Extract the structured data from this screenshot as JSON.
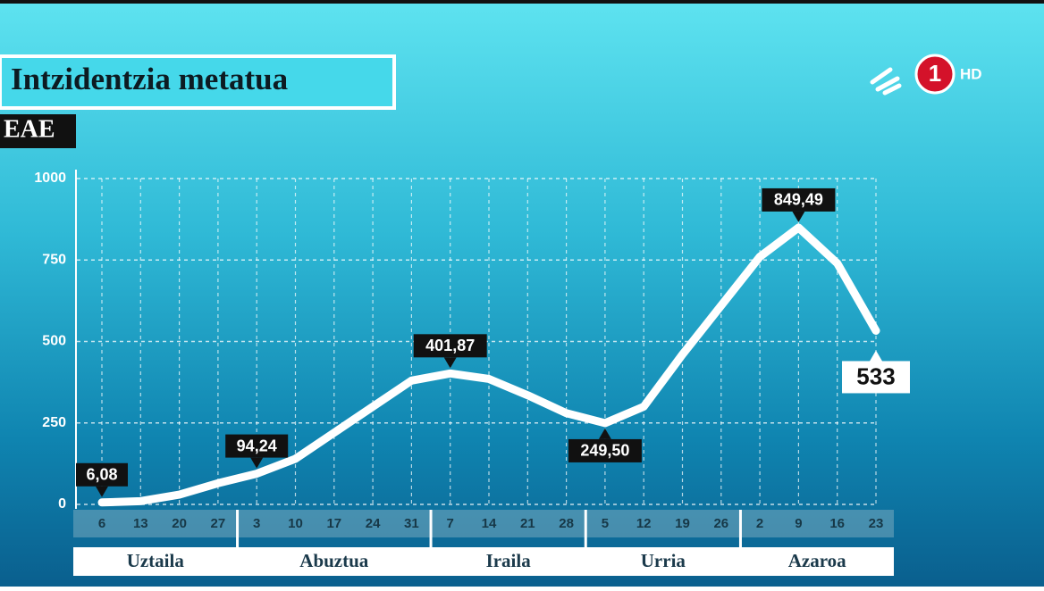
{
  "chart_data": {
    "type": "line",
    "title": "Intzidentzia metatua",
    "subtitle": "EAE",
    "logo": {
      "channel": "1",
      "quality": "HD"
    },
    "categories": [
      "6",
      "13",
      "20",
      "27",
      "3",
      "10",
      "17",
      "24",
      "31",
      "7",
      "14",
      "21",
      "28",
      "5",
      "12",
      "19",
      "26",
      "2",
      "9",
      "16",
      "23"
    ],
    "months": [
      "Uztaila",
      "Abuztua",
      "Iraila",
      "Urria",
      "Azaroa"
    ],
    "values": [
      6.08,
      10,
      30,
      65,
      94.24,
      140,
      220,
      300,
      380,
      401.87,
      385,
      335,
      280,
      249.5,
      300,
      460,
      610,
      760,
      849.49,
      740,
      533
    ],
    "value_labels": [
      "6,08",
      null,
      null,
      null,
      "94,24",
      null,
      null,
      null,
      null,
      "401,87",
      null,
      null,
      null,
      "249,50",
      null,
      null,
      null,
      null,
      "849,49",
      null,
      "533"
    ],
    "color": "#ffffff",
    "ylim": [
      0,
      1000
    ],
    "yticks": [
      0,
      250,
      500,
      750,
      1000
    ],
    "grid": true
  }
}
